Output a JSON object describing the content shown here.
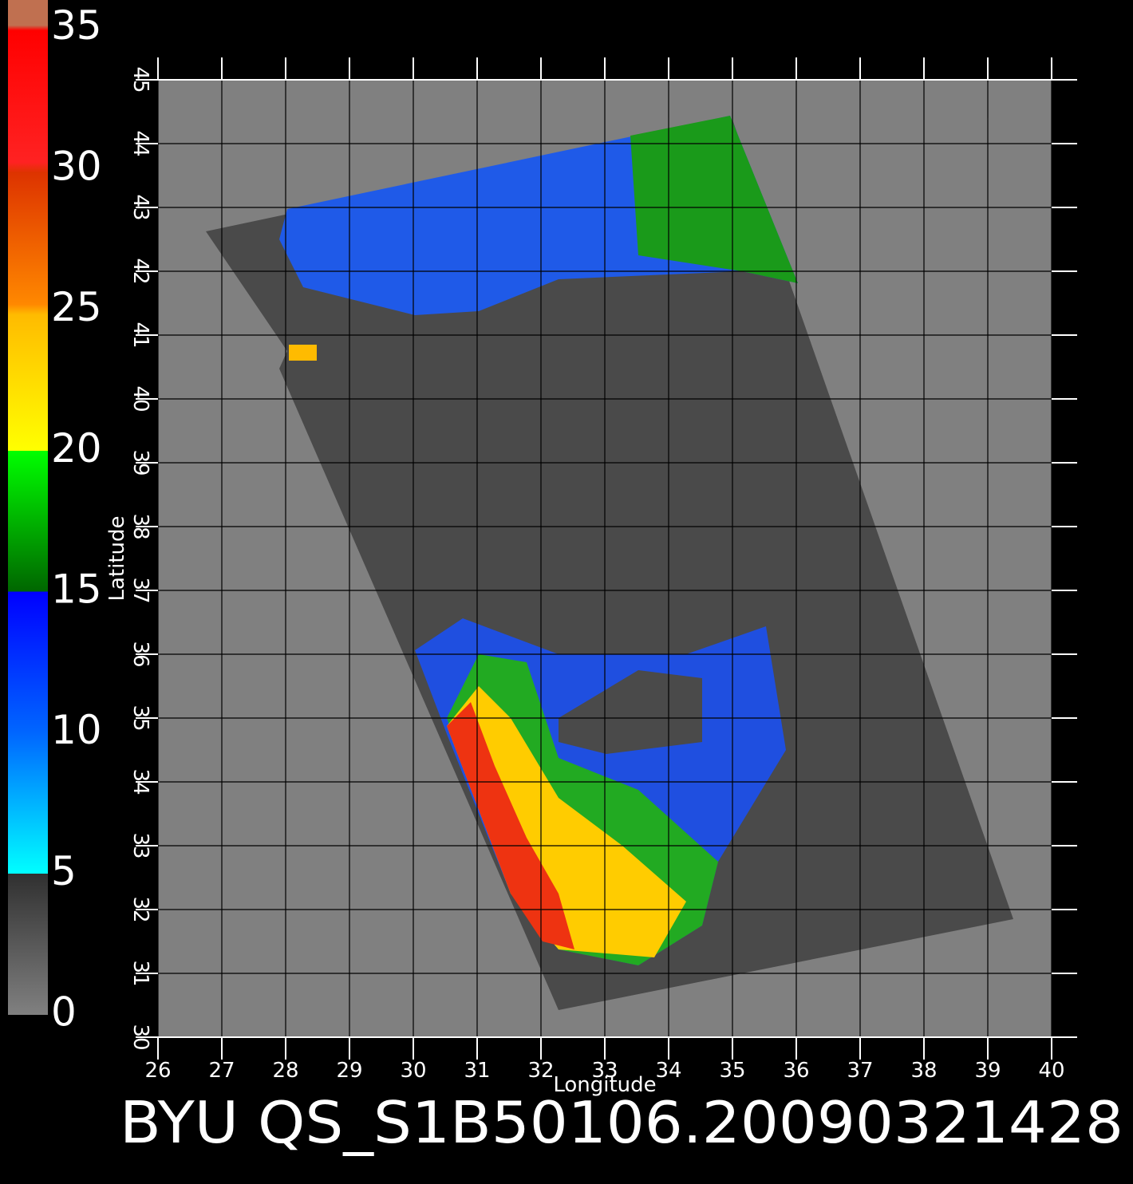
{
  "title": "BYU  QS_S1B50106.20090321428",
  "x_axis": {
    "label": "Longitude",
    "lim": [
      26,
      40
    ],
    "ticks": [
      26,
      27,
      28,
      29,
      30,
      31,
      32,
      33,
      34,
      35,
      36,
      37,
      38,
      39,
      40
    ]
  },
  "y_axis": {
    "label": "Latitude",
    "lim": [
      30,
      45
    ],
    "ticks": [
      30,
      31,
      32,
      33,
      34,
      35,
      36,
      37,
      38,
      39,
      40,
      41,
      42,
      43,
      44,
      45
    ]
  },
  "colorbar": {
    "lim": [
      0,
      36
    ],
    "ticks": [
      0,
      5,
      10,
      15,
      20,
      25,
      30,
      35
    ]
  }
}
